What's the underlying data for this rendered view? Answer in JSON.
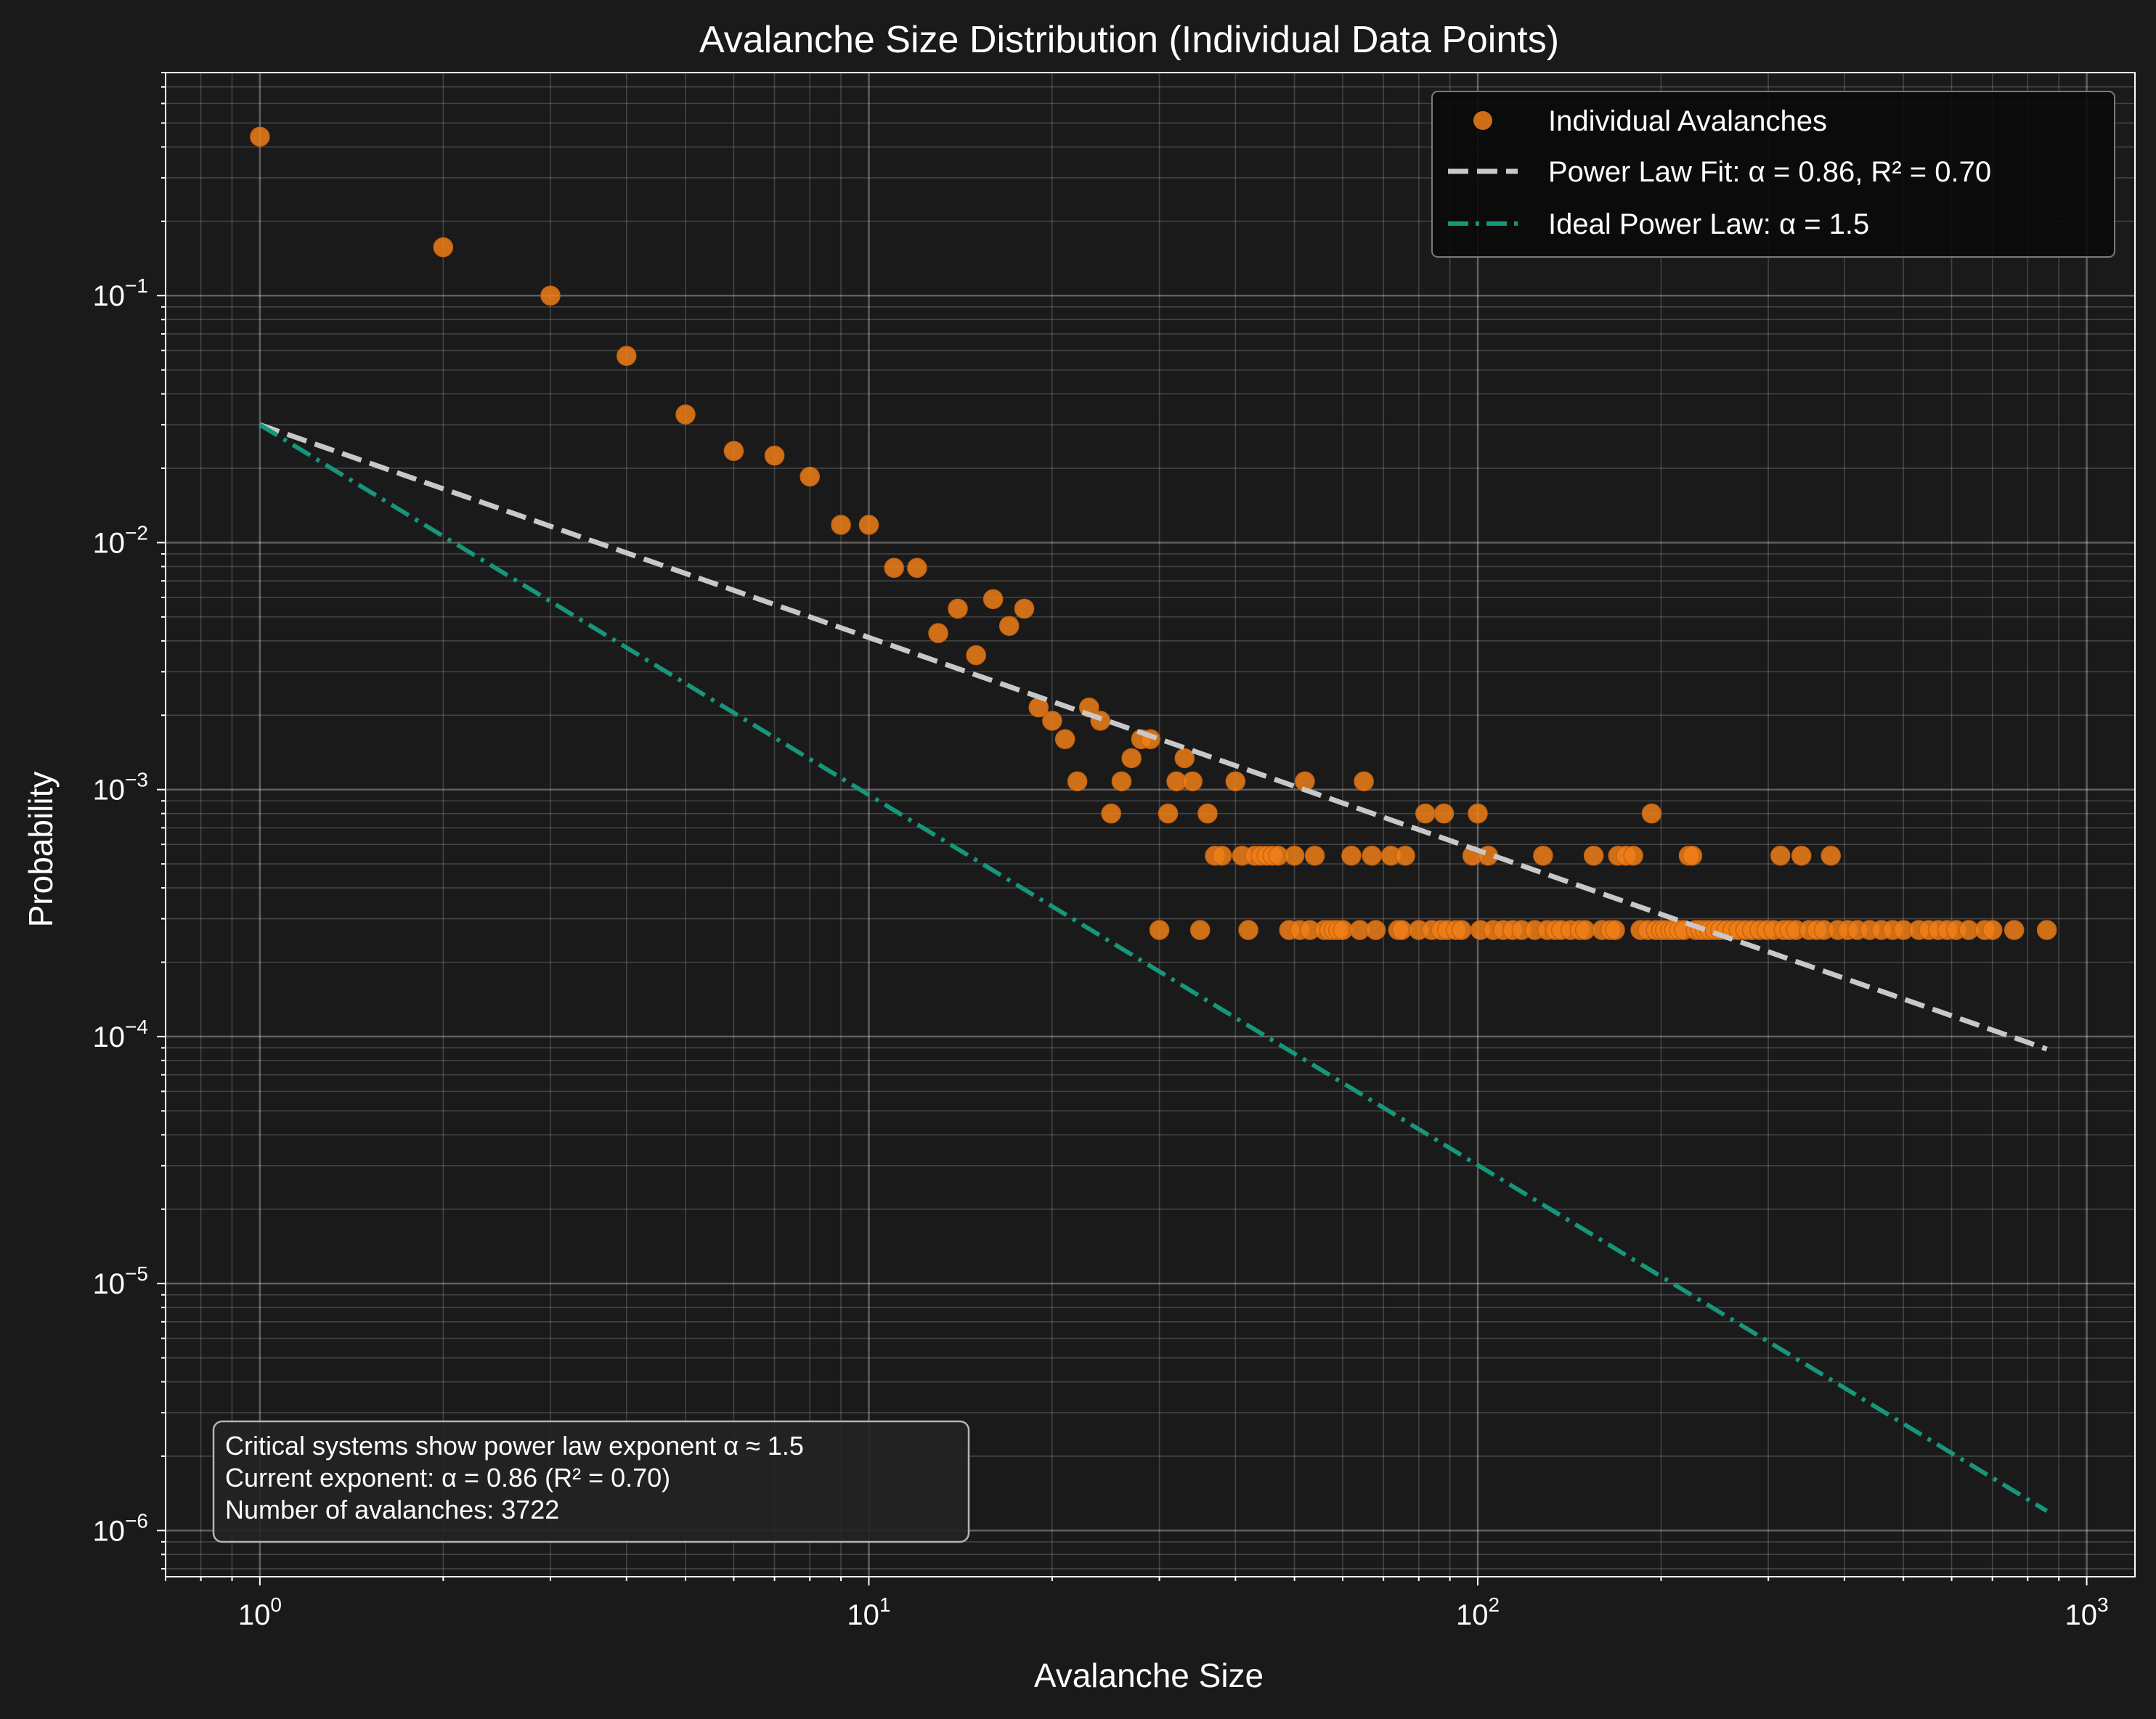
{
  "colors": {
    "background": "#1a1a1a",
    "plot_background": "#1a1a1a",
    "text": "#ffffff",
    "points": "#f07f17",
    "fit_line": "#c8c8c8",
    "ideal_line": "#16967a",
    "grid": "#ffffff"
  },
  "chart_data": {
    "type": "scatter",
    "title": "Avalanche Size Distribution (Individual Data Points)",
    "xlabel": "Avalanche Size",
    "ylabel": "Probability",
    "x_scale": "log",
    "y_scale": "log",
    "xlim": [
      0.7,
      1200
    ],
    "ylim": [
      6.5e-07,
      0.8
    ],
    "x_ticks": [
      {
        "value": 1,
        "label": "10",
        "exp": "0"
      },
      {
        "value": 10,
        "label": "10",
        "exp": "1"
      },
      {
        "value": 100,
        "label": "10",
        "exp": "2"
      },
      {
        "value": 1000,
        "label": "10",
        "exp": "3"
      }
    ],
    "y_ticks": [
      {
        "value": 0.1,
        "label": "10",
        "exp": "−1"
      },
      {
        "value": 0.01,
        "label": "10",
        "exp": "−2"
      },
      {
        "value": 0.001,
        "label": "10",
        "exp": "−3"
      },
      {
        "value": 0.0001,
        "label": "10",
        "exp": "−4"
      },
      {
        "value": 1e-05,
        "label": "10",
        "exp": "−5"
      },
      {
        "value": 1e-06,
        "label": "10",
        "exp": "−6"
      }
    ],
    "grid": true,
    "legend_position": "top-right",
    "series": [
      {
        "name": "Individual Avalanches",
        "kind": "points",
        "points": [
          [
            1,
            0.44
          ],
          [
            2,
            0.157
          ],
          [
            3,
            0.1
          ],
          [
            4,
            0.057
          ],
          [
            5,
            0.033
          ],
          [
            6,
            0.0235
          ],
          [
            7,
            0.0225
          ],
          [
            8,
            0.0185
          ],
          [
            9,
            0.0118
          ],
          [
            10,
            0.0118
          ],
          [
            11,
            0.0079
          ],
          [
            12,
            0.0079
          ],
          [
            13,
            0.0043
          ],
          [
            14,
            0.0054
          ],
          [
            15,
            0.0035
          ],
          [
            16,
            0.0059
          ],
          [
            17,
            0.0046
          ],
          [
            18,
            0.0054
          ],
          [
            19,
            0.00215
          ],
          [
            20,
            0.0019
          ],
          [
            21,
            0.0016
          ],
          [
            22,
            0.00108
          ],
          [
            23,
            0.00215
          ],
          [
            24,
            0.0019
          ],
          [
            25,
            0.0008
          ],
          [
            26,
            0.00108
          ],
          [
            27,
            0.00134
          ],
          [
            28,
            0.0016
          ],
          [
            29,
            0.0016
          ],
          [
            30,
            0.00027
          ],
          [
            31,
            0.0008
          ],
          [
            32,
            0.00108
          ],
          [
            33,
            0.00134
          ],
          [
            34,
            0.00108
          ],
          [
            35,
            0.00027
          ],
          [
            36,
            0.0008
          ],
          [
            37,
            0.00054
          ],
          [
            38,
            0.00054
          ],
          [
            40,
            0.00108
          ],
          [
            41,
            0.00054
          ],
          [
            42,
            0.00027
          ],
          [
            43,
            0.00054
          ],
          [
            44,
            0.00054
          ],
          [
            45,
            0.00054
          ],
          [
            46,
            0.00054
          ],
          [
            47,
            0.00054
          ],
          [
            49,
            0.00027
          ],
          [
            50,
            0.00054
          ],
          [
            51,
            0.00027
          ],
          [
            52,
            0.00108
          ],
          [
            53,
            0.00027
          ],
          [
            54,
            0.00054
          ],
          [
            56,
            0.00027
          ],
          [
            57,
            0.00027
          ],
          [
            58,
            0.00027
          ],
          [
            59,
            0.00027
          ],
          [
            60,
            0.00027
          ],
          [
            62,
            0.00054
          ],
          [
            64,
            0.00027
          ],
          [
            65,
            0.00108
          ],
          [
            67,
            0.00054
          ],
          [
            68,
            0.00027
          ],
          [
            72,
            0.00054
          ],
          [
            74,
            0.00027
          ],
          [
            75,
            0.00027
          ],
          [
            76,
            0.00054
          ],
          [
            80,
            0.00027
          ],
          [
            82,
            0.0008
          ],
          [
            84,
            0.00027
          ],
          [
            87,
            0.00027
          ],
          [
            88,
            0.0008
          ],
          [
            89,
            0.00027
          ],
          [
            92,
            0.00027
          ],
          [
            94,
            0.00027
          ],
          [
            98,
            0.00054
          ],
          [
            100,
            0.0008
          ],
          [
            101,
            0.00027
          ],
          [
            104,
            0.00054
          ],
          [
            106,
            0.00027
          ],
          [
            110,
            0.00027
          ],
          [
            114,
            0.00027
          ],
          [
            118,
            0.00027
          ],
          [
            124,
            0.00027
          ],
          [
            128,
            0.00054
          ],
          [
            130,
            0.00027
          ],
          [
            134,
            0.00027
          ],
          [
            137,
            0.00027
          ],
          [
            142,
            0.00027
          ],
          [
            147,
            0.00027
          ],
          [
            150,
            0.00027
          ],
          [
            155,
            0.00054
          ],
          [
            160,
            0.00027
          ],
          [
            165,
            0.00027
          ],
          [
            168,
            0.00027
          ],
          [
            170,
            0.00054
          ],
          [
            175,
            0.00054
          ],
          [
            180,
            0.00054
          ],
          [
            185,
            0.00027
          ],
          [
            190,
            0.00027
          ],
          [
            193,
            0.0008
          ],
          [
            196,
            0.00027
          ],
          [
            200,
            0.00027
          ],
          [
            203,
            0.00027
          ],
          [
            207,
            0.00027
          ],
          [
            210,
            0.00027
          ],
          [
            214,
            0.00027
          ],
          [
            218,
            0.00027
          ],
          [
            222,
            0.00054
          ],
          [
            225,
            0.00054
          ],
          [
            228,
            0.00027
          ],
          [
            232,
            0.00027
          ],
          [
            236,
            0.00027
          ],
          [
            240,
            0.00027
          ],
          [
            245,
            0.00027
          ],
          [
            250,
            0.00027
          ],
          [
            256,
            0.00027
          ],
          [
            262,
            0.00027
          ],
          [
            268,
            0.00027
          ],
          [
            275,
            0.00027
          ],
          [
            282,
            0.00027
          ],
          [
            290,
            0.00027
          ],
          [
            298,
            0.00027
          ],
          [
            306,
            0.00027
          ],
          [
            314,
            0.00054
          ],
          [
            318,
            0.00027
          ],
          [
            325,
            0.00027
          ],
          [
            333,
            0.00027
          ],
          [
            340,
            0.00054
          ],
          [
            350,
            0.00027
          ],
          [
            360,
            0.00027
          ],
          [
            370,
            0.00027
          ],
          [
            380,
            0.00054
          ],
          [
            390,
            0.00027
          ],
          [
            405,
            0.00027
          ],
          [
            420,
            0.00027
          ],
          [
            440,
            0.00027
          ],
          [
            460,
            0.00027
          ],
          [
            480,
            0.00027
          ],
          [
            500,
            0.00027
          ],
          [
            530,
            0.00027
          ],
          [
            550,
            0.00027
          ],
          [
            570,
            0.00027
          ],
          [
            590,
            0.00027
          ],
          [
            610,
            0.00027
          ],
          [
            640,
            0.00027
          ],
          [
            680,
            0.00027
          ],
          [
            700,
            0.00027
          ],
          [
            760,
            0.00027
          ],
          [
            860,
            0.00027
          ]
        ]
      },
      {
        "name": "Power Law Fit: α = 0.86, R² = 0.70",
        "kind": "dashed-line",
        "points": [
          [
            1,
            0.03
          ],
          [
            860,
            8.9e-05
          ]
        ]
      },
      {
        "name": "Ideal Power Law: α = 1.5",
        "kind": "dashdot-line",
        "points": [
          [
            1,
            0.03
          ],
          [
            860,
            1.2e-06
          ]
        ]
      }
    ],
    "annotation": {
      "lines": [
        "Critical systems show power law exponent α ≈ 1.5",
        "Current exponent: α = 0.86 (R² = 0.70)",
        "Number of avalanches: 3722"
      ],
      "position": "bottom-left"
    }
  }
}
